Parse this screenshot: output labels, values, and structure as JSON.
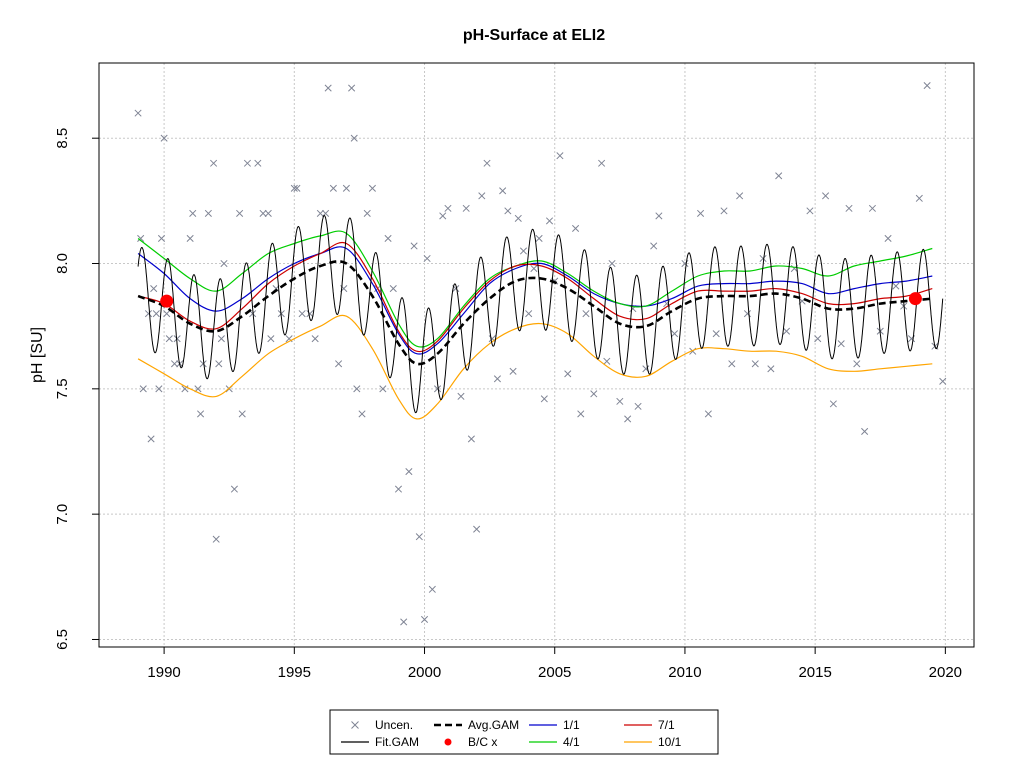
{
  "chart_data": {
    "type": "line",
    "title": "pH-Surface at ELI2",
    "xlabel": "",
    "ylabel": "pH [SU]",
    "xlim": [
      1987.5,
      2021.1
    ],
    "ylim": [
      6.47,
      8.8
    ],
    "x_ticks": [
      1990,
      1995,
      2000,
      2005,
      2010,
      2015,
      2020
    ],
    "y_ticks": [
      6.5,
      7.0,
      7.5,
      8.0,
      8.5
    ],
    "grid": true,
    "legend_position": "bottom",
    "legend": [
      {
        "label": "Uncen.",
        "symbol": "x",
        "color": "#7f8494"
      },
      {
        "label": "Fit.GAM",
        "symbol": "line",
        "color": "#000000"
      },
      {
        "label": "Avg.GAM",
        "symbol": "dashed",
        "color": "#000000"
      },
      {
        "label": "B/C x",
        "symbol": "point",
        "color": "#ff0000"
      },
      {
        "label": "1/1",
        "symbol": "line",
        "color": "#0000cd"
      },
      {
        "label": "4/1",
        "symbol": "line",
        "color": "#00cd00"
      },
      {
        "label": "7/1",
        "symbol": "line",
        "color": "#cd0000"
      },
      {
        "label": "10/1",
        "symbol": "line",
        "color": "#ffa500"
      }
    ],
    "series": [
      {
        "name": "Avg.GAM",
        "color": "#000000",
        "style": "dashed",
        "x": [
          1989.0,
          1990.0,
          1991.0,
          1992.0,
          1993.0,
          1994.0,
          1995.0,
          1996.0,
          1997.0,
          1998.0,
          1999.0,
          1999.7,
          2000.5,
          2001.5,
          2002.5,
          2003.5,
          2004.5,
          2005.5,
          2006.5,
          2007.5,
          2008.5,
          2009.5,
          2010.5,
          2011.5,
          2012.5,
          2013.5,
          2014.5,
          2015.5,
          2016.5,
          2017.5,
          2018.5,
          2019.5
        ],
        "y": [
          7.87,
          7.83,
          7.76,
          7.73,
          7.79,
          7.87,
          7.94,
          7.99,
          8.0,
          7.87,
          7.68,
          7.6,
          7.64,
          7.76,
          7.86,
          7.93,
          7.94,
          7.9,
          7.83,
          7.76,
          7.75,
          7.81,
          7.86,
          7.87,
          7.87,
          7.88,
          7.86,
          7.82,
          7.82,
          7.84,
          7.85,
          7.86
        ]
      },
      {
        "name": "1/1",
        "color": "#0000cd",
        "style": "solid",
        "x": [
          1989.0,
          1990.0,
          1991.0,
          1992.0,
          1993.0,
          1994.0,
          1995.0,
          1996.0,
          1997.0,
          1998.0,
          1999.0,
          1999.7,
          2000.5,
          2001.5,
          2002.5,
          2003.5,
          2004.5,
          2005.5,
          2006.5,
          2007.5,
          2008.5,
          2009.5,
          2010.5,
          2011.5,
          2012.5,
          2013.5,
          2014.5,
          2015.5,
          2016.5,
          2017.5,
          2018.5,
          2019.5
        ],
        "y": [
          8.04,
          7.96,
          7.86,
          7.81,
          7.86,
          7.94,
          8.0,
          8.04,
          8.06,
          7.92,
          7.72,
          7.64,
          7.68,
          7.8,
          7.92,
          7.98,
          8.0,
          7.95,
          7.88,
          7.84,
          7.83,
          7.86,
          7.91,
          7.92,
          7.92,
          7.93,
          7.92,
          7.88,
          7.9,
          7.92,
          7.93,
          7.95
        ]
      },
      {
        "name": "4/1",
        "color": "#00cd00",
        "style": "solid",
        "x": [
          1989.0,
          1990.0,
          1991.0,
          1992.0,
          1993.0,
          1994.0,
          1995.0,
          1996.0,
          1997.0,
          1998.0,
          1999.0,
          1999.7,
          2000.5,
          2001.5,
          2002.5,
          2003.5,
          2004.5,
          2005.5,
          2006.5,
          2007.5,
          2008.5,
          2009.5,
          2010.5,
          2011.5,
          2012.5,
          2013.5,
          2014.5,
          2015.5,
          2016.5,
          2017.5,
          2018.5,
          2019.5
        ],
        "y": [
          8.1,
          8.02,
          7.94,
          7.89,
          7.96,
          8.04,
          8.08,
          8.11,
          8.12,
          7.97,
          7.76,
          7.67,
          7.7,
          7.83,
          7.94,
          7.99,
          8.01,
          7.96,
          7.89,
          7.84,
          7.83,
          7.89,
          7.95,
          7.97,
          7.97,
          7.99,
          7.98,
          7.95,
          7.99,
          8.01,
          8.03,
          8.06
        ]
      },
      {
        "name": "7/1",
        "color": "#cd0000",
        "style": "solid",
        "x": [
          1989.0,
          1990.0,
          1991.0,
          1992.0,
          1993.0,
          1994.0,
          1995.0,
          1996.0,
          1997.0,
          1998.0,
          1999.0,
          1999.7,
          2000.5,
          2001.5,
          2002.5,
          2003.5,
          2004.5,
          2005.5,
          2006.5,
          2007.5,
          2008.5,
          2009.5,
          2010.5,
          2011.5,
          2012.5,
          2013.5,
          2014.5,
          2015.5,
          2016.5,
          2017.5,
          2018.5,
          2019.5
        ],
        "y": [
          7.87,
          7.84,
          7.77,
          7.74,
          7.82,
          7.92,
          7.99,
          8.04,
          8.08,
          7.94,
          7.73,
          7.65,
          7.69,
          7.82,
          7.93,
          7.99,
          7.99,
          7.94,
          7.86,
          7.79,
          7.78,
          7.84,
          7.89,
          7.89,
          7.89,
          7.9,
          7.88,
          7.84,
          7.84,
          7.86,
          7.87,
          7.9
        ]
      },
      {
        "name": "10/1",
        "color": "#ffa500",
        "style": "solid",
        "x": [
          1989.0,
          1990.0,
          1991.0,
          1992.0,
          1993.0,
          1994.0,
          1995.0,
          1996.0,
          1997.0,
          1998.0,
          1999.0,
          1999.7,
          2000.5,
          2001.5,
          2002.5,
          2003.5,
          2004.5,
          2005.5,
          2006.5,
          2007.5,
          2008.5,
          2009.5,
          2010.5,
          2011.5,
          2012.5,
          2013.5,
          2014.5,
          2015.5,
          2016.5,
          2017.5,
          2018.5,
          2019.5
        ],
        "y": [
          7.62,
          7.56,
          7.5,
          7.47,
          7.55,
          7.64,
          7.7,
          7.75,
          7.79,
          7.66,
          7.46,
          7.38,
          7.44,
          7.58,
          7.68,
          7.74,
          7.76,
          7.72,
          7.63,
          7.56,
          7.55,
          7.61,
          7.66,
          7.66,
          7.65,
          7.65,
          7.63,
          7.58,
          7.57,
          7.58,
          7.59,
          7.6
        ]
      }
    ],
    "fit_gam": {
      "name": "Fit.GAM",
      "color": "#000000",
      "x_start": 1989.0,
      "x_end": 2019.9,
      "seasonal_amplitude": 0.2,
      "peak_fraction_of_year": 0.15
    },
    "bc_points": {
      "name": "B/C x",
      "color": "#ff0000",
      "x": [
        1990.1,
        2018.85
      ],
      "y": [
        7.85,
        7.86
      ]
    },
    "uncensored": {
      "name": "Uncen.",
      "color": "#7f8494",
      "x": [
        1989.0,
        1989.1,
        1989.2,
        1989.4,
        1989.5,
        1989.6,
        1989.7,
        1989.8,
        1989.9,
        1990.0,
        1990.1,
        1990.2,
        1990.4,
        1990.5,
        1990.6,
        1990.8,
        1991.0,
        1991.1,
        1991.3,
        1991.4,
        1991.5,
        1991.7,
        1991.9,
        1992.0,
        1992.1,
        1992.2,
        1992.3,
        1992.5,
        1992.7,
        1992.9,
        1993.0,
        1993.2,
        1993.4,
        1993.6,
        1993.8,
        1994.0,
        1994.1,
        1994.3,
        1994.5,
        1994.8,
        1995.0,
        1995.1,
        1995.3,
        1995.6,
        1995.8,
        1996.0,
        1996.2,
        1996.3,
        1996.5,
        1996.7,
        1996.9,
        1997.0,
        1997.2,
        1997.3,
        1997.4,
        1997.6,
        1997.8,
        1998.0,
        1998.2,
        1998.4,
        1998.6,
        1998.8,
        1999.0,
        1999.2,
        1999.4,
        1999.6,
        1999.8,
        2000.0,
        2000.1,
        2000.3,
        2000.5,
        2000.7,
        2000.9,
        2001.2,
        2001.4,
        2001.6,
        2001.8,
        2002.0,
        2002.2,
        2002.4,
        2002.6,
        2002.8,
        2003.0,
        2003.2,
        2003.4,
        2003.6,
        2003.8,
        2004.0,
        2004.2,
        2004.4,
        2004.6,
        2004.8,
        2005.0,
        2005.2,
        2005.5,
        2005.8,
        2006.0,
        2006.2,
        2006.5,
        2006.8,
        2007.0,
        2007.2,
        2007.5,
        2007.8,
        2008.0,
        2008.2,
        2008.5,
        2008.8,
        2009.0,
        2009.3,
        2009.6,
        2010.0,
        2010.3,
        2010.6,
        2010.9,
        2011.2,
        2011.5,
        2011.8,
        2012.1,
        2012.4,
        2012.7,
        2013.0,
        2013.3,
        2013.6,
        2013.9,
        2014.2,
        2014.5,
        2014.8,
        2015.1,
        2015.4,
        2015.7,
        2016.0,
        2016.3,
        2016.6,
        2016.9,
        2017.2,
        2017.5,
        2017.8,
        2018.1,
        2018.4,
        2018.7,
        2019.0,
        2019.3,
        2019.6,
        2019.9
      ],
      "y": [
        8.6,
        8.1,
        7.5,
        7.8,
        7.3,
        7.9,
        7.8,
        7.5,
        8.1,
        8.5,
        7.8,
        7.7,
        7.6,
        7.7,
        7.6,
        7.5,
        8.1,
        8.2,
        7.5,
        7.4,
        7.6,
        8.2,
        8.4,
        6.9,
        7.6,
        7.7,
        8.0,
        7.5,
        7.1,
        8.2,
        7.4,
        8.4,
        7.8,
        8.4,
        8.2,
        8.2,
        7.7,
        7.9,
        7.8,
        7.7,
        8.3,
        8.3,
        7.8,
        7.8,
        7.7,
        8.2,
        8.2,
        8.7,
        8.3,
        7.6,
        7.9,
        8.3,
        8.7,
        8.5,
        7.5,
        7.4,
        8.2,
        8.3,
        7.9,
        7.5,
        8.1,
        7.9,
        7.1,
        6.57,
        7.17,
        8.07,
        6.91,
        6.58,
        8.02,
        6.7,
        7.5,
        8.19,
        8.22,
        7.9,
        7.47,
        8.22,
        7.3,
        6.94,
        8.27,
        8.4,
        7.7,
        7.54,
        8.29,
        8.21,
        7.57,
        8.18,
        8.05,
        7.8,
        7.98,
        8.1,
        7.46,
        8.17,
        7.93,
        8.43,
        7.56,
        8.14,
        7.4,
        7.8,
        7.48,
        8.4,
        7.61,
        8.0,
        7.45,
        7.38,
        7.82,
        7.43,
        7.58,
        8.07,
        8.19,
        7.84,
        7.72,
        8.0,
        7.65,
        8.2,
        7.4,
        7.72,
        8.21,
        7.6,
        8.27,
        7.8,
        7.6,
        8.02,
        7.58,
        8.35,
        7.73,
        7.98,
        7.85,
        8.21,
        7.7,
        8.27,
        7.44,
        7.68,
        8.22,
        7.6,
        7.33,
        8.22,
        7.73,
        8.1,
        7.91,
        7.83,
        7.7,
        8.26,
        8.71,
        7.67,
        7.53
      ]
    }
  }
}
